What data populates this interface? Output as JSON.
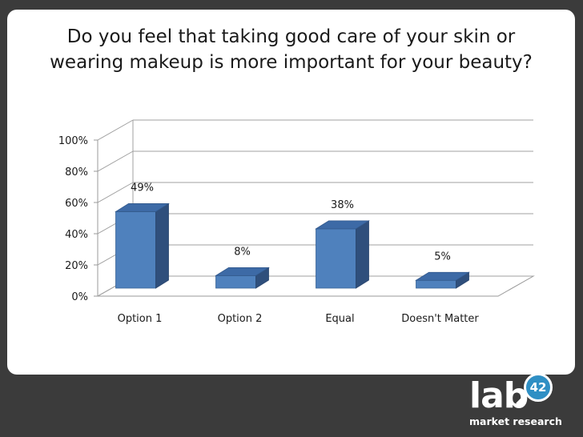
{
  "title_lines": [
    "Do you feel that taking good care of your skin or",
    "wearing makeup is more important for your beauty?"
  ],
  "chart_data": {
    "type": "bar",
    "title": "Do you feel that taking good care of your skin or wearing makeup is more important for your beauty?",
    "categories": [
      "Option 1",
      "Option 2",
      "Equal",
      "Doesn't Matter"
    ],
    "values": [
      49,
      8,
      38,
      5
    ],
    "data_labels": [
      "49%",
      "8%",
      "38%",
      "5%"
    ],
    "y_ticks": [
      "0%",
      "20%",
      "40%",
      "60%",
      "80%",
      "100%"
    ],
    "ylim": [
      0,
      100
    ],
    "xlabel": "",
    "ylabel": "",
    "grid": true,
    "style": "3d-column",
    "bar_color": "#4f81bd"
  },
  "logo": {
    "word": "lab",
    "badge": "42",
    "tagline": "market research"
  }
}
